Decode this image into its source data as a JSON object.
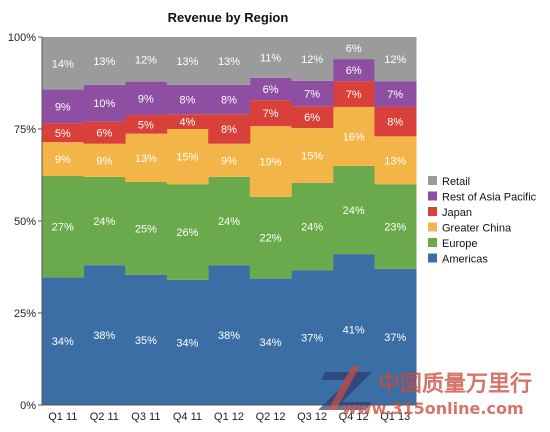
{
  "chart_data": {
    "type": "area",
    "stacked": "percent",
    "title": "Revenue by Region",
    "xlabel": "",
    "ylabel": "",
    "ylim": [
      0,
      100
    ],
    "yticks": [
      "0%",
      "25%",
      "50%",
      "75%",
      "100%"
    ],
    "categories": [
      "Q1 11",
      "Q2 11",
      "Q3 11",
      "Q4 11",
      "Q1 12",
      "Q2 12",
      "Q3 12",
      "Q4 12",
      "Q1 13"
    ],
    "legend_position": "right",
    "series": [
      {
        "name": "Americas",
        "color": "#3a6ea5",
        "values": [
          34,
          38,
          35,
          34,
          38,
          34,
          37,
          41,
          37
        ]
      },
      {
        "name": "Europe",
        "color": "#6aaa4c",
        "values": [
          27,
          24,
          25,
          26,
          24,
          22,
          24,
          24,
          23
        ]
      },
      {
        "name": "Greater China",
        "color": "#f4b548",
        "values": [
          9,
          9,
          13,
          15,
          9,
          19,
          15,
          16,
          13
        ]
      },
      {
        "name": "Japan",
        "color": "#d9403a",
        "values": [
          5,
          6,
          5,
          4,
          8,
          7,
          6,
          7,
          8
        ]
      },
      {
        "name": "Rest of Asia Pacific",
        "color": "#8e4fa3",
        "values": [
          9,
          10,
          9,
          8,
          8,
          6,
          7,
          6,
          7
        ]
      },
      {
        "name": "Retail",
        "color": "#9b9b9b",
        "values": [
          14,
          13,
          12,
          13,
          13,
          11,
          12,
          6,
          12
        ]
      }
    ]
  },
  "watermark": {
    "text": "中国质量万里行",
    "url": "www.315online.com"
  }
}
